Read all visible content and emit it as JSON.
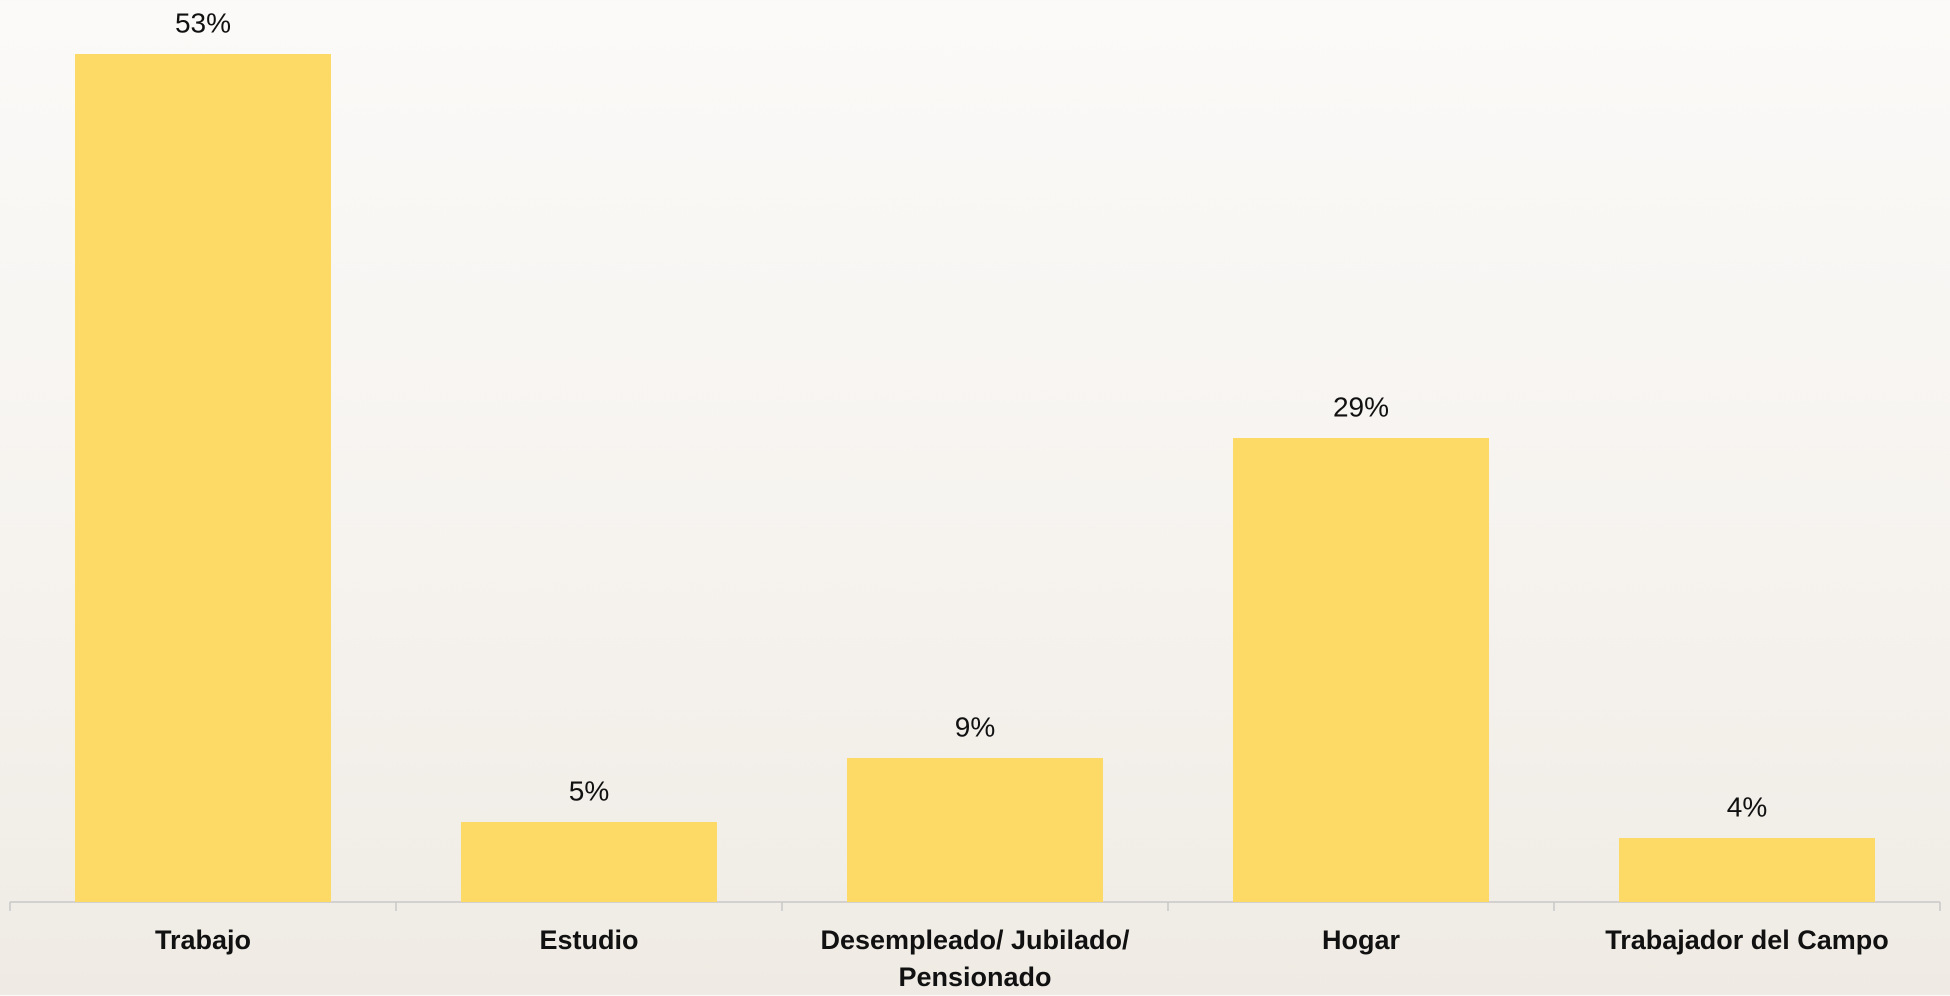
{
  "chart_data": {
    "type": "bar",
    "categories": [
      "Trabajo",
      "Estudio",
      "Desempleado/ Jubilado/ Pensionado",
      "Hogar",
      "Trabajador del Campo"
    ],
    "values": [
      53,
      5,
      9,
      29,
      4
    ],
    "value_labels": [
      "53%",
      "5%",
      "9%",
      "29%",
      "4%"
    ],
    "color": "#fdd966"
  }
}
